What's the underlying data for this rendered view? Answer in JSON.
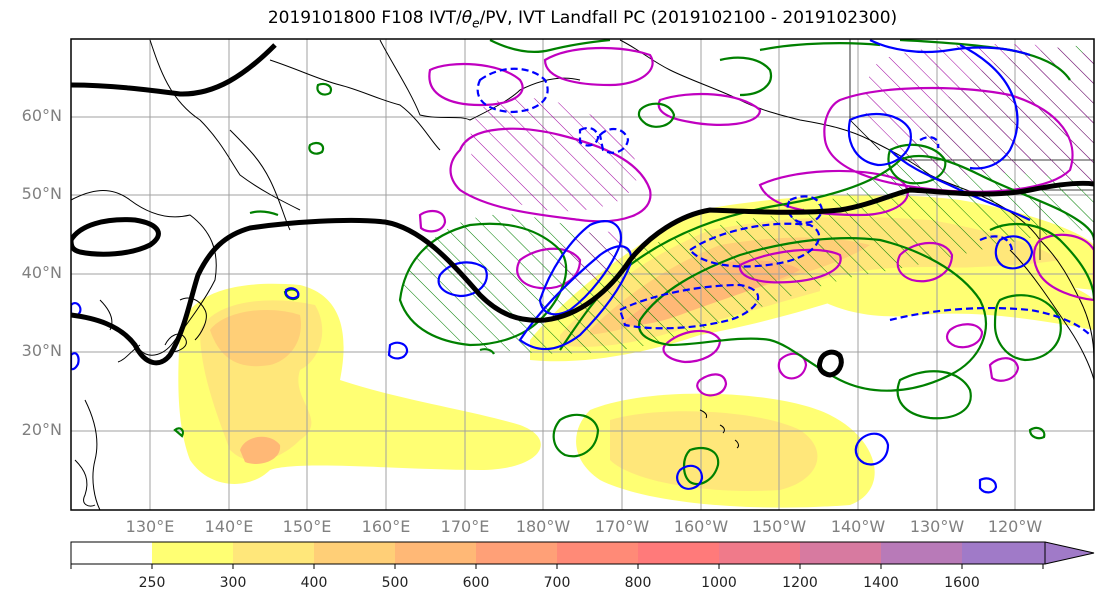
{
  "title": "2019101800 F108 IVT/θe/PV, IVT Landfall PC (2019102100 - 2019102300)",
  "title_parts": {
    "a": "2019101800 F108 IVT/",
    "theta": "θ",
    "sub": "e",
    "b": "/PV, IVT Landfall PC (2019102100 - 2019102300)"
  },
  "lat_labels": [
    "60°N",
    "50°N",
    "40°N",
    "30°N",
    "20°N"
  ],
  "lon_labels": [
    "130°E",
    "140°E",
    "150°E",
    "160°E",
    "170°E",
    "180°W",
    "170°W",
    "160°W",
    "150°W",
    "140°W",
    "130°W",
    "120°W"
  ],
  "colorbar": {
    "levels": [
      "250",
      "300",
      "400",
      "500",
      "600",
      "700",
      "800",
      "1000",
      "1200",
      "1400",
      "1600"
    ],
    "colors": [
      "#ffffff",
      "#ffff73",
      "#ffe77a",
      "#ffcf77",
      "#ffb876",
      "#ffa077",
      "#ff8a77",
      "#ff7a7a",
      "#f07a8a",
      "#d77aa0",
      "#b87ab8",
      "#a07ac8"
    ]
  },
  "legend_colors": {
    "pv_contour": "#0000ff",
    "theta_contour": "#c000c0",
    "landfall_contour": "#008000",
    "hatch_green": "#008000",
    "hatch_magenta": "#a000a0",
    "jet": "#000000"
  }
}
